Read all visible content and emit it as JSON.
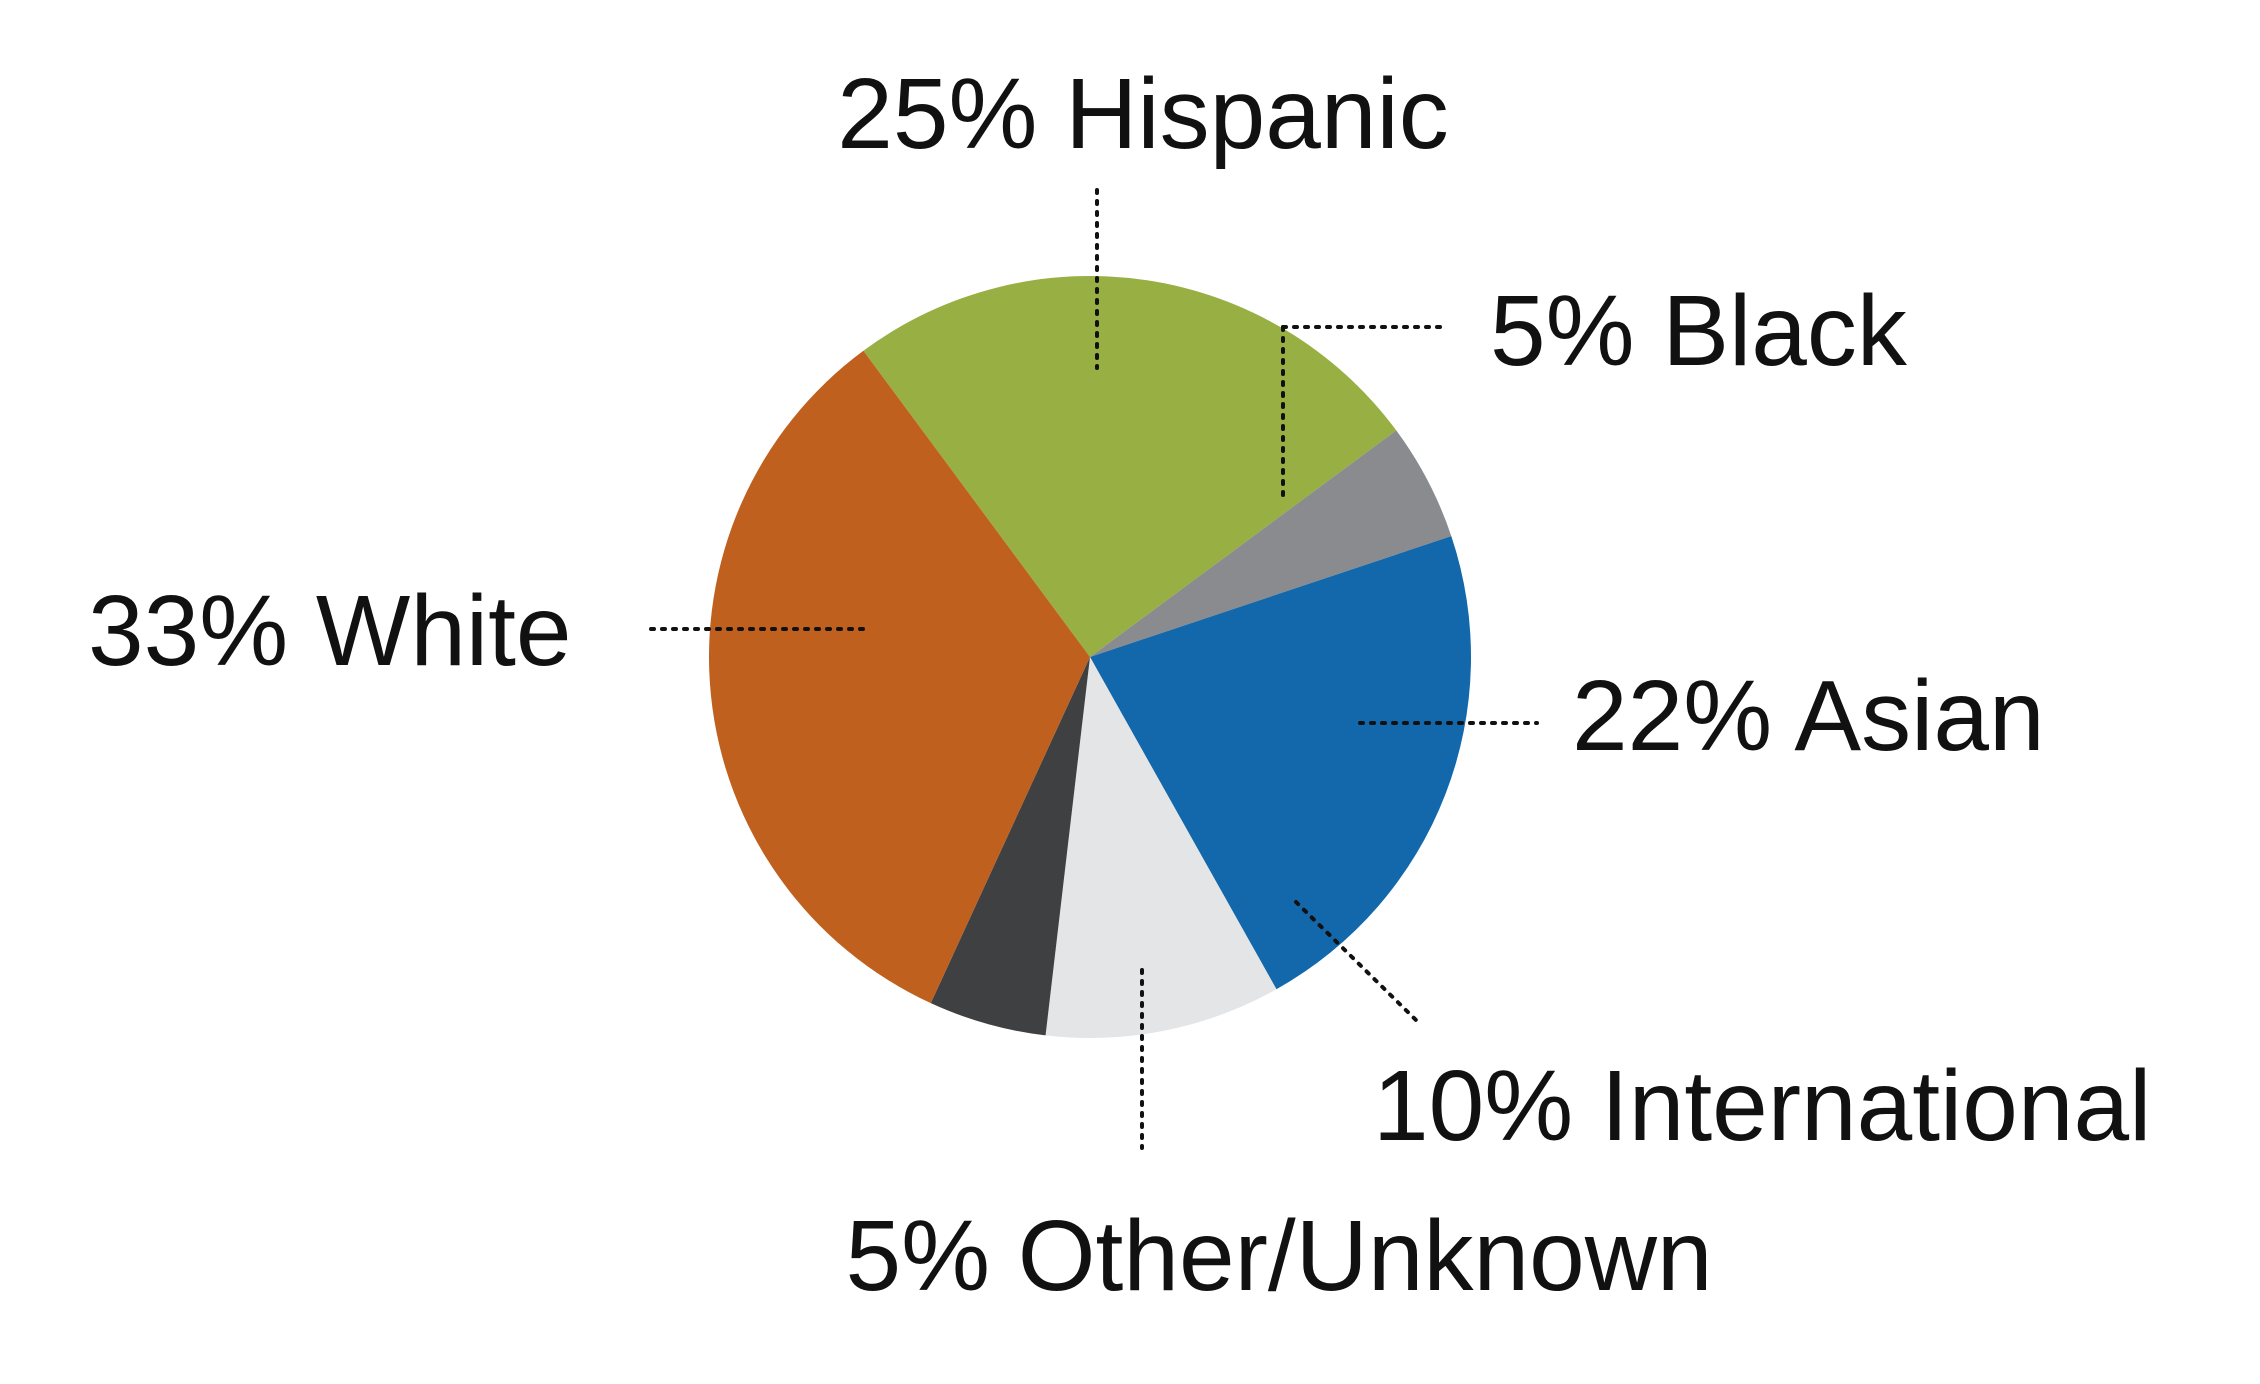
{
  "chart_data": {
    "type": "pie",
    "title": "",
    "start_angle_deg": -36.5,
    "direction": "clockwise",
    "slices": [
      {
        "label": "25% Hispanic",
        "name": "Hispanic",
        "value": 25,
        "color": "#98B043"
      },
      {
        "label": "5% Black",
        "name": "Black",
        "value": 5,
        "color": "#8A8B8E"
      },
      {
        "label": "22% Asian",
        "name": "Asian",
        "value": 22,
        "color": "#1268AA"
      },
      {
        "label": "10% International",
        "name": "International",
        "value": 10,
        "color": "#E4E5E7"
      },
      {
        "label": "5% Other/Unknown",
        "name": "Other/Unknown",
        "value": 5,
        "color": "#3F4042"
      },
      {
        "label": "33% White",
        "name": "White",
        "value": 33,
        "color": "#C0601E"
      }
    ]
  }
}
